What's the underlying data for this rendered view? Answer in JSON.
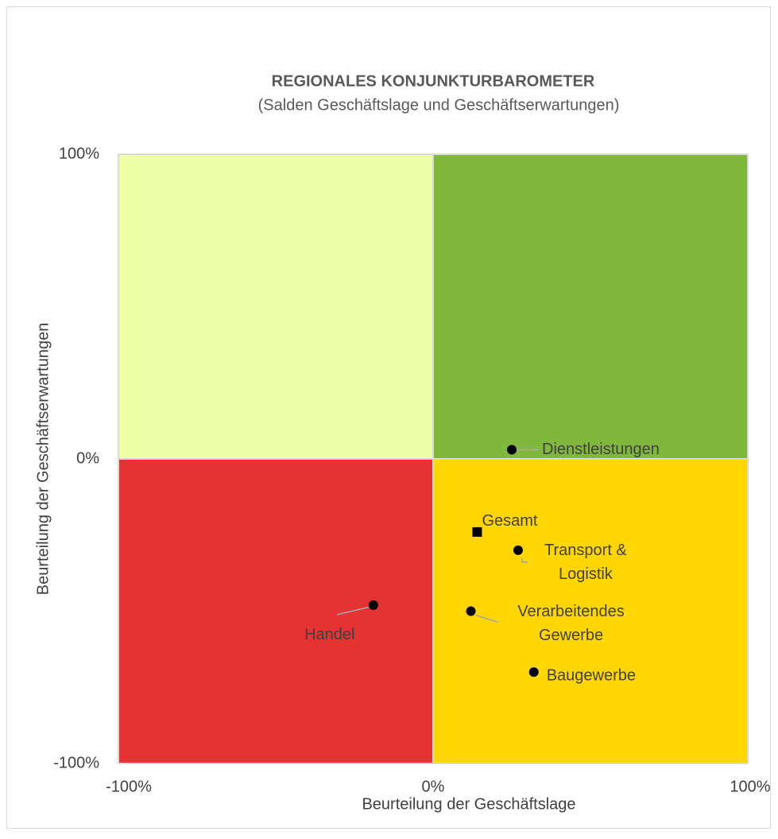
{
  "chart_data": {
    "type": "scatter",
    "title": "REGIONALES KONJUNKTURBAROMETER",
    "subtitle": "(Salden Geschäftslage und Geschäftserwartungen)",
    "x_label": "Beurteilung der Geschäftslage",
    "y_label": "Beurteilung der Geschäftserwartungen",
    "xlim": [
      -100,
      100
    ],
    "ylim": [
      -100,
      100
    ],
    "xticks": [
      {
        "value": -100,
        "label": "-100%"
      },
      {
        "value": 0,
        "label": "0%"
      },
      {
        "value": 100,
        "label": "100%"
      }
    ],
    "yticks": [
      {
        "value": -100,
        "label": "-100%"
      },
      {
        "value": 0,
        "label": "0%"
      },
      {
        "value": 100,
        "label": "100%"
      }
    ],
    "quadrant_colors": {
      "top_left": "#efffa6",
      "top_right": "#80b83c",
      "bottom_left": "#e53232",
      "bottom_right": "#ffd600"
    },
    "marker_color": "#000000",
    "labels": [
      [
        "Dienstleistungen"
      ],
      [
        "Gesamt"
      ],
      [
        "Transport &",
        "Logistik"
      ],
      [
        "Verarbeitendes",
        "Gewerbe"
      ],
      [
        "Baugewerbe"
      ],
      [
        "Handel"
      ]
    ],
    "markers": [
      "circle",
      "square",
      "circle",
      "circle",
      "circle",
      "circle"
    ],
    "x": [
      25,
      14,
      27,
      12,
      32,
      -19
    ],
    "values": [
      3,
      -24,
      -30,
      -50,
      -70,
      -48
    ]
  }
}
